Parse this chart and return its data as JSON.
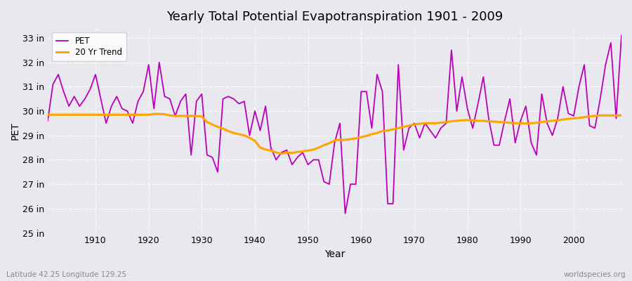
{
  "title": "Yearly Total Potential Evapotranspiration 1901 - 2009",
  "xlabel": "Year",
  "ylabel": "PET",
  "lat_lon_label": "Latitude 42.25 Longitude 129.25",
  "watermark": "worldspecies.org",
  "ylim": [
    25,
    33.4
  ],
  "yticks": [
    25,
    26,
    27,
    28,
    29,
    30,
    31,
    32,
    33
  ],
  "pet_color": "#bb00bb",
  "trend_color": "#FFA500",
  "bg_color": "#e8e8ee",
  "years": [
    1901,
    1902,
    1903,
    1904,
    1905,
    1906,
    1907,
    1908,
    1909,
    1910,
    1911,
    1912,
    1913,
    1914,
    1915,
    1916,
    1917,
    1918,
    1919,
    1920,
    1921,
    1922,
    1923,
    1924,
    1925,
    1926,
    1927,
    1928,
    1929,
    1930,
    1931,
    1932,
    1933,
    1934,
    1935,
    1936,
    1937,
    1938,
    1939,
    1940,
    1941,
    1942,
    1943,
    1944,
    1945,
    1946,
    1947,
    1948,
    1949,
    1950,
    1951,
    1952,
    1953,
    1954,
    1955,
    1956,
    1957,
    1958,
    1959,
    1960,
    1961,
    1962,
    1963,
    1964,
    1965,
    1966,
    1967,
    1968,
    1969,
    1970,
    1971,
    1972,
    1973,
    1974,
    1975,
    1976,
    1977,
    1978,
    1979,
    1980,
    1981,
    1982,
    1983,
    1984,
    1985,
    1986,
    1987,
    1988,
    1989,
    1990,
    1991,
    1992,
    1993,
    1994,
    1995,
    1996,
    1997,
    1998,
    1999,
    2000,
    2001,
    2002,
    2003,
    2004,
    2005,
    2006,
    2007,
    2008,
    2009
  ],
  "pet": [
    29.6,
    31.1,
    31.5,
    30.8,
    30.2,
    30.6,
    30.2,
    30.5,
    30.9,
    31.5,
    30.5,
    29.5,
    30.2,
    30.6,
    30.1,
    30.0,
    29.5,
    30.4,
    30.8,
    31.9,
    30.1,
    32.0,
    30.6,
    30.5,
    29.8,
    30.4,
    30.7,
    28.2,
    30.4,
    30.7,
    28.2,
    28.1,
    27.5,
    30.5,
    30.6,
    30.5,
    30.3,
    30.4,
    29.0,
    30.0,
    29.2,
    30.2,
    28.5,
    28.0,
    28.3,
    28.4,
    27.8,
    28.1,
    28.3,
    27.8,
    28.0,
    28.0,
    27.1,
    27.0,
    28.7,
    29.5,
    25.8,
    27.0,
    27.0,
    30.8,
    30.8,
    29.3,
    31.5,
    30.8,
    26.2,
    26.2,
    31.9,
    28.4,
    29.3,
    29.5,
    28.9,
    29.5,
    29.2,
    28.9,
    29.3,
    29.5,
    32.5,
    30.0,
    31.4,
    30.1,
    29.3,
    30.3,
    31.4,
    29.7,
    28.6,
    28.6,
    29.6,
    30.5,
    28.7,
    29.6,
    30.2,
    28.7,
    28.2,
    30.7,
    29.5,
    29.0,
    29.7,
    31.0,
    29.9,
    29.8,
    31.0,
    31.9,
    29.4,
    29.3,
    30.5,
    31.9,
    32.8,
    29.7,
    33.1
  ],
  "trend": [
    29.85,
    29.85,
    29.85,
    29.85,
    29.85,
    29.85,
    29.85,
    29.85,
    29.85,
    29.85,
    29.85,
    29.85,
    29.85,
    29.85,
    29.85,
    29.85,
    29.85,
    29.85,
    29.85,
    29.85,
    29.88,
    29.88,
    29.87,
    29.82,
    29.8,
    29.8,
    29.8,
    29.8,
    29.8,
    29.78,
    29.55,
    29.45,
    29.35,
    29.28,
    29.18,
    29.1,
    29.05,
    29.0,
    28.9,
    28.78,
    28.5,
    28.42,
    28.38,
    28.3,
    28.25,
    28.3,
    28.28,
    28.32,
    28.35,
    28.38,
    28.42,
    28.5,
    28.6,
    28.68,
    28.8,
    28.82,
    28.82,
    28.85,
    28.88,
    28.93,
    28.98,
    29.05,
    29.1,
    29.18,
    29.2,
    29.25,
    29.3,
    29.35,
    29.4,
    29.45,
    29.48,
    29.5,
    29.5,
    29.5,
    29.52,
    29.55,
    29.58,
    29.6,
    29.62,
    29.63,
    29.62,
    29.6,
    29.6,
    29.58,
    29.57,
    29.55,
    29.54,
    29.52,
    29.5,
    29.5,
    29.49,
    29.5,
    29.52,
    29.55,
    29.58,
    29.6,
    29.62,
    29.65,
    29.68,
    29.7,
    29.72,
    29.75,
    29.78,
    29.8,
    29.82,
    29.82,
    29.82,
    29.82,
    29.82
  ]
}
